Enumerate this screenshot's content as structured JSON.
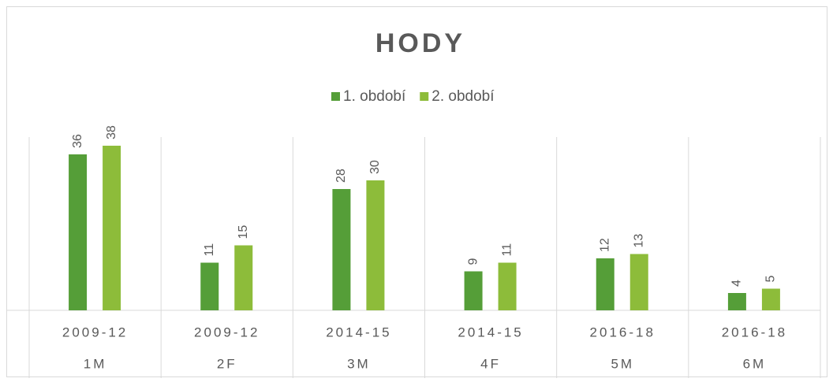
{
  "chart_data": {
    "type": "bar",
    "title": "HODY",
    "categories": [
      "2009-12",
      "2009-12",
      "2014-15",
      "2014-15",
      "2016-18",
      "2016-18"
    ],
    "subcategories": [
      "1M",
      "2F",
      "3M",
      "4F",
      "5M",
      "6M"
    ],
    "series": [
      {
        "name": "1. období",
        "color": "#559e38",
        "values": [
          36,
          11,
          28,
          9,
          12,
          4
        ]
      },
      {
        "name": "2. období",
        "color": "#8dbc3a",
        "values": [
          38,
          15,
          30,
          11,
          13,
          5
        ]
      }
    ],
    "ylim": [
      0,
      40
    ],
    "legend": "top"
  }
}
